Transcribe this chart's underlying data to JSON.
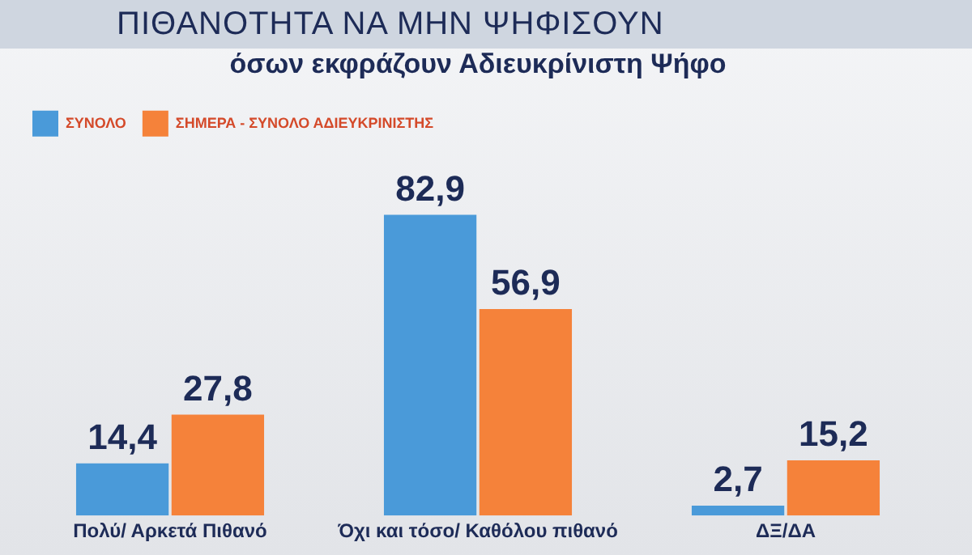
{
  "chart_data": {
    "type": "bar",
    "title": "ΠΙΘΑΝΟΤΗΤΑ ΝΑ ΜΗΝ ΨΗΦΙΣΟΥΝ",
    "subtitle": "όσων εκφράζουν Αδιευκρίνιστη Ψήφο",
    "categories": [
      "Πολύ/ Αρκετά Πιθανό",
      "Όχι και τόσο/ Καθόλου πιθανό",
      "ΔΞ/ΔΑ"
    ],
    "series": [
      {
        "name": "ΣΥΝΟΛΟ",
        "color": "#4a9ad9",
        "values": [
          14.4,
          82.9,
          2.7
        ],
        "value_labels": [
          "14,4",
          "82,9",
          "2,7"
        ]
      },
      {
        "name": "ΣΗΜΕΡΑ - ΣΥΝΟΛΟ ΑΔΙΕΥΚΡΙΝΙΣΤΗΣ",
        "color": "#f5823a",
        "values": [
          27.8,
          56.9,
          15.2
        ],
        "value_labels": [
          "27,8",
          "56,9",
          "15,2"
        ]
      }
    ],
    "legend": "top left",
    "grid": false
  }
}
